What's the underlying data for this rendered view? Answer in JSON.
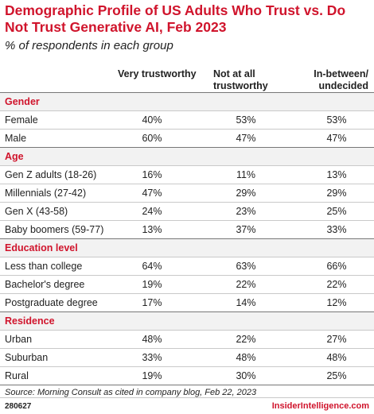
{
  "chart_data": {
    "type": "table",
    "title": "Demographic Profile of US Adults Who Trust vs. Do Not Trust Generative AI, Feb 2023",
    "subtitle": "% of respondents in each group",
    "columns": [
      "Very trustworthy",
      "Not at all trustworthy",
      "In-between/ undecided"
    ],
    "groups": [
      {
        "name": "Gender",
        "rows": [
          {
            "label": "Female",
            "values": [
              "40%",
              "53%",
              "53%"
            ]
          },
          {
            "label": "Male",
            "values": [
              "60%",
              "47%",
              "47%"
            ]
          }
        ]
      },
      {
        "name": "Age",
        "rows": [
          {
            "label": "Gen Z adults (18-26)",
            "values": [
              "16%",
              "11%",
              "13%"
            ]
          },
          {
            "label": "Millennials (27-42)",
            "values": [
              "47%",
              "29%",
              "29%"
            ]
          },
          {
            "label": "Gen X (43-58)",
            "values": [
              "24%",
              "23%",
              "25%"
            ]
          },
          {
            "label": "Baby boomers (59-77)",
            "values": [
              "13%",
              "37%",
              "33%"
            ]
          }
        ]
      },
      {
        "name": "Education level",
        "rows": [
          {
            "label": "Less than college",
            "values": [
              "64%",
              "63%",
              "66%"
            ]
          },
          {
            "label": "Bachelor's degree",
            "values": [
              "19%",
              "22%",
              "22%"
            ]
          },
          {
            "label": "Postgraduate degree",
            "values": [
              "17%",
              "14%",
              "12%"
            ]
          }
        ]
      },
      {
        "name": "Residence",
        "rows": [
          {
            "label": "Urban",
            "values": [
              "48%",
              "22%",
              "27%"
            ]
          },
          {
            "label": "Suburban",
            "values": [
              "33%",
              "48%",
              "48%"
            ]
          },
          {
            "label": "Rural",
            "values": [
              "19%",
              "30%",
              "25%"
            ]
          }
        ]
      }
    ],
    "source": "Source: Morning Consult as cited in company blog, Feb 22, 2023",
    "chart_id": "280627",
    "brand": "InsiderIntelligence.com"
  },
  "colors": {
    "accent": "#d0142c",
    "section_bg": "#f2f2f2",
    "text": "#222222"
  }
}
